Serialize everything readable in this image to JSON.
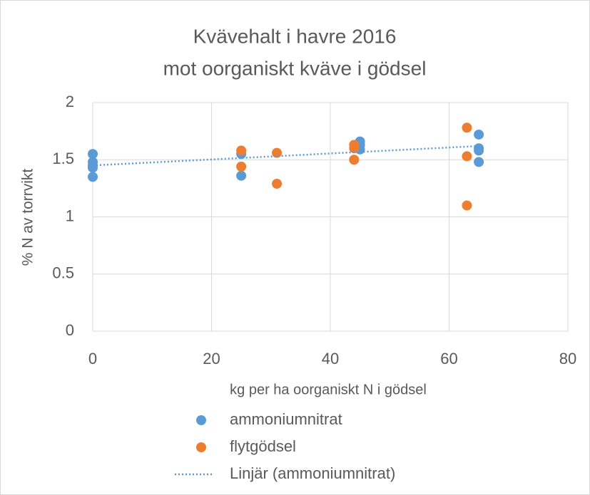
{
  "chart_data": {
    "type": "scatter",
    "title": [
      "Kvävehalt i havre 2016",
      "mot oorganiskt kväve i gödsel"
    ],
    "xlabel": "kg per ha oorganiskt N i gödsel",
    "ylabel": "% N av torrvikt",
    "xlim": [
      0,
      80
    ],
    "xticks": [
      0,
      20,
      40,
      60,
      80
    ],
    "ylim": [
      0,
      2
    ],
    "yticks": [
      0,
      0.5,
      1,
      1.5,
      2
    ],
    "grid": true,
    "legend": "bottom",
    "series": [
      {
        "name": "ammoniumnitrat",
        "color": "#5b9bd5",
        "x": [
          0,
          0,
          0,
          0,
          0,
          25,
          25,
          45,
          45,
          45,
          65,
          65,
          65,
          65
        ],
        "values": [
          1.55,
          1.48,
          1.45,
          1.43,
          1.35,
          1.55,
          1.36,
          1.66,
          1.63,
          1.59,
          1.72,
          1.6,
          1.58,
          1.48
        ]
      },
      {
        "name": "flytgödsel",
        "color": "#ed7d31",
        "x": [
          25,
          25,
          31,
          31,
          44,
          44,
          44,
          63,
          63,
          63
        ],
        "values": [
          1.58,
          1.44,
          1.56,
          1.29,
          1.63,
          1.6,
          1.5,
          1.78,
          1.53,
          1.1
        ]
      },
      {
        "name": "Linjär (ammoniumnitrat)",
        "color": "#5b9bd5",
        "style": "dotted",
        "x": [
          0,
          65
        ],
        "values": [
          1.45,
          1.62
        ]
      }
    ]
  }
}
